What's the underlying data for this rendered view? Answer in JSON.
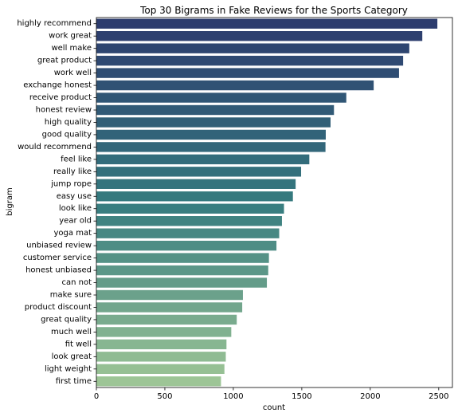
{
  "chart_data": {
    "type": "bar",
    "orientation": "horizontal",
    "title": "Top 30 Bigrams in Fake Reviews for the Sports Category",
    "xlabel": "count",
    "ylabel": "bigram",
    "xlim": [
      0,
      2600
    ],
    "xticks": [
      0,
      500,
      1000,
      1500,
      2000,
      2500
    ],
    "grid": false,
    "legend": "none",
    "palette": {
      "start": "#2d3c6e",
      "mid": "#357b7f",
      "end": "#9dc596"
    },
    "categories": [
      "highly recommend",
      "work great",
      "well make",
      "great product",
      "work well",
      "exchange honest",
      "receive product",
      "honest review",
      "high quality",
      "good quality",
      "would recommend",
      "feel like",
      "really like",
      "jump rope",
      "easy use",
      "look like",
      "year old",
      "yoga mat",
      "unbiased review",
      "customer service",
      "honest unbiased",
      "can not",
      "make sure",
      "product discount",
      "great quality",
      "much well",
      "fit well",
      "look great",
      "light weight",
      "first time"
    ],
    "values": [
      2490,
      2380,
      2285,
      2240,
      2210,
      2025,
      1825,
      1735,
      1710,
      1675,
      1673,
      1555,
      1495,
      1455,
      1435,
      1370,
      1355,
      1335,
      1315,
      1260,
      1255,
      1245,
      1070,
      1065,
      1025,
      985,
      950,
      945,
      935,
      910
    ]
  }
}
